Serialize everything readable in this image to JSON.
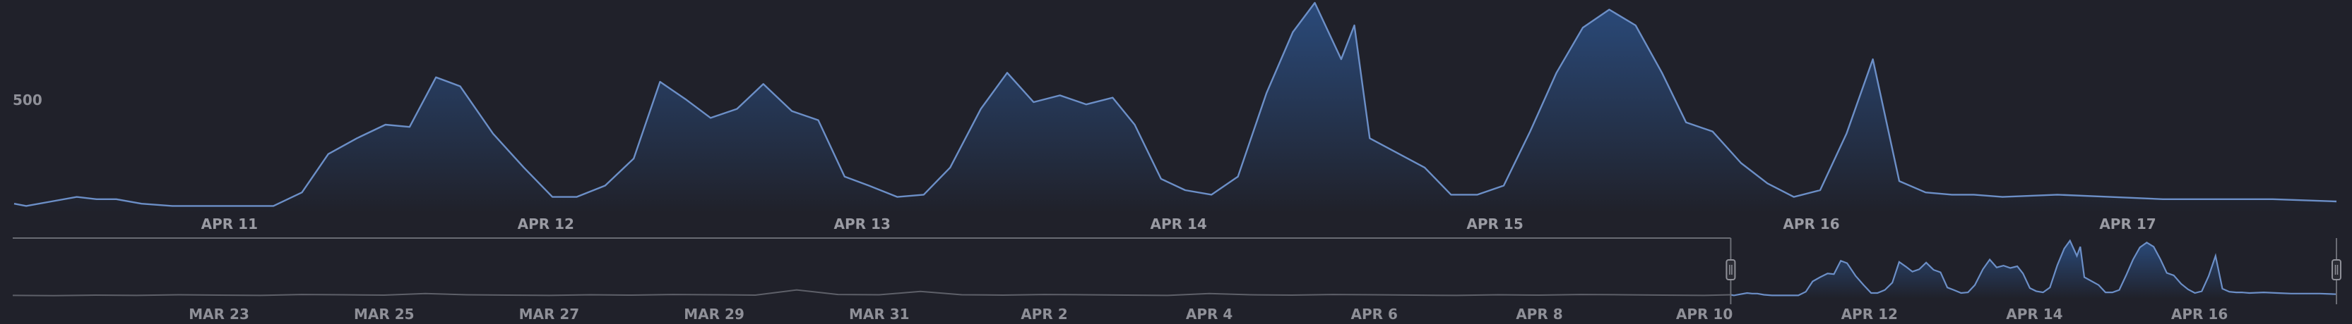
{
  "chart_data": [
    {
      "type": "area",
      "title": "",
      "xlabel": "",
      "ylabel": "",
      "x_range": [
        "2021-04-10T07:40",
        "2021-04-17T15:50"
      ],
      "ylim": [
        0,
        880
      ],
      "y_ticks": [
        500
      ],
      "x_ticks": [
        {
          "x": "2021-04-11",
          "label": "APR 11"
        },
        {
          "x": "2021-04-12",
          "label": "APR 12"
        },
        {
          "x": "2021-04-13",
          "label": "APR 13"
        },
        {
          "x": "2021-04-14",
          "label": "APR 14"
        },
        {
          "x": "2021-04-15",
          "label": "APR 15"
        },
        {
          "x": "2021-04-16",
          "label": "APR 16"
        },
        {
          "x": "2021-04-17",
          "label": "APR 17"
        }
      ],
      "grid": false,
      "legend": "none",
      "colors": {
        "line": "#6c8fc7",
        "fill_top": "#2a4a7a",
        "fill_bottom": "#20212a"
      },
      "x": [
        "2021-04-10T07:40",
        "2021-04-10T08:35",
        "2021-04-10T10:30",
        "2021-04-10T12:25",
        "2021-04-10T13:55",
        "2021-04-10T15:25",
        "2021-04-10T17:20",
        "2021-04-10T19:40",
        "2021-04-10T22:00",
        "2021-04-11T01:25",
        "2021-04-11T03:20",
        "2021-04-11T05:30",
        "2021-04-11T07:30",
        "2021-04-11T09:40",
        "2021-04-11T11:50",
        "2021-04-11T13:40",
        "2021-04-11T15:40",
        "2021-04-11T17:30",
        "2021-04-11T20:00",
        "2021-04-11T22:20",
        "2021-04-12T00:30",
        "2021-04-12T02:20",
        "2021-04-12T04:30",
        "2021-04-12T06:40",
        "2021-04-12T08:40",
        "2021-04-12T10:40",
        "2021-04-12T12:30",
        "2021-04-12T14:30",
        "2021-04-12T16:30",
        "2021-04-12T18:40",
        "2021-04-12T20:40",
        "2021-04-12T22:40",
        "2021-04-13T00:30",
        "2021-04-13T02:40",
        "2021-04-13T04:40",
        "2021-04-13T06:40",
        "2021-04-13T09:00",
        "2021-04-13T11:00",
        "2021-04-13T13:00",
        "2021-04-13T15:00",
        "2021-04-13T17:00",
        "2021-04-13T19:00",
        "2021-04-13T20:40",
        "2021-04-13T22:40",
        "2021-04-14T00:30",
        "2021-04-14T02:30",
        "2021-04-14T04:30",
        "2021-04-14T06:40",
        "2021-04-14T08:40",
        "2021-04-14T10:20",
        "2021-04-14T12:20",
        "2021-04-14T13:20",
        "2021-04-14T14:30",
        "2021-04-14T18:40",
        "2021-04-14T20:40",
        "2021-04-14T22:40",
        "2021-04-15T00:40",
        "2021-04-15T02:40",
        "2021-04-15T04:40",
        "2021-04-15T06:40",
        "2021-04-15T08:40",
        "2021-04-15T10:40",
        "2021-04-15T12:40",
        "2021-04-15T14:30",
        "2021-04-15T16:30",
        "2021-04-15T18:40",
        "2021-04-15T20:40",
        "2021-04-15T22:40",
        "2021-04-16T00:40",
        "2021-04-16T02:40",
        "2021-04-16T04:40",
        "2021-04-16T06:40",
        "2021-04-16T08:40",
        "2021-04-16T10:40",
        "2021-04-16T12:20",
        "2021-04-16T14:30",
        "2021-04-16T18:40",
        "2021-04-16T22:40",
        "2021-04-17T02:40",
        "2021-04-17T06:40",
        "2021-04-17T11:00",
        "2021-04-17T15:50"
      ],
      "y": [
        40,
        30,
        50,
        70,
        60,
        60,
        40,
        30,
        30,
        30,
        30,
        90,
        260,
        330,
        390,
        380,
        600,
        560,
        350,
        200,
        70,
        70,
        120,
        240,
        580,
        500,
        420,
        460,
        570,
        450,
        410,
        160,
        120,
        70,
        80,
        200,
        460,
        620,
        490,
        520,
        480,
        510,
        390,
        150,
        100,
        80,
        160,
        530,
        800,
        930,
        680,
        830,
        330,
        200,
        80,
        80,
        120,
        360,
        620,
        820,
        900,
        830,
        620,
        400,
        360,
        220,
        130,
        70,
        100,
        350,
        680,
        140,
        90,
        80,
        80,
        70,
        80,
        70,
        60,
        60,
        60,
        50
      ],
      "series": [
        {
          "values_ref": "y"
        }
      ]
    },
    {
      "type": "area",
      "title": "",
      "xlabel": "",
      "ylabel": "",
      "x_range": [
        "2021-03-20T12:00",
        "2021-04-17T15:50"
      ],
      "ylim": [
        0,
        880
      ],
      "grid": false,
      "legend": "none",
      "x_ticks": [
        {
          "x": "2021-03-23",
          "label": "MAR 23"
        },
        {
          "x": "2021-03-25",
          "label": "MAR 25"
        },
        {
          "x": "2021-03-27",
          "label": "MAR 27"
        },
        {
          "x": "2021-03-29",
          "label": "MAR 29"
        },
        {
          "x": "2021-03-31",
          "label": "MAR 31"
        },
        {
          "x": "2021-04-02",
          "label": "APR 2"
        },
        {
          "x": "2021-04-04",
          "label": "APR 4"
        },
        {
          "x": "2021-04-06",
          "label": "APR 6"
        },
        {
          "x": "2021-04-08",
          "label": "APR 8"
        },
        {
          "x": "2021-04-10",
          "label": "APR 10"
        },
        {
          "x": "2021-04-12",
          "label": "APR 12"
        },
        {
          "x": "2021-04-14",
          "label": "APR 14"
        },
        {
          "x": "2021-04-16",
          "label": "APR 16"
        }
      ],
      "selection": [
        "2021-04-10T07:40",
        "2021-04-17T15:50"
      ],
      "colors": {
        "line_dim": "#5e6069",
        "line": "#6c8fc7",
        "fill_top": "#2a4a7a",
        "mask": "#2a2b33",
        "border": "#6a6c74"
      },
      "x": [
        "2021-03-20T12:00",
        "2021-03-21T00:00",
        "2021-03-21T12:00",
        "2021-03-22T00:00",
        "2021-03-22T12:00",
        "2021-03-23T00:00",
        "2021-03-23T12:00",
        "2021-03-24T00:00",
        "2021-03-24T12:00",
        "2021-03-25T00:00",
        "2021-03-25T12:00",
        "2021-03-26T00:00",
        "2021-03-26T12:00",
        "2021-03-27T00:00",
        "2021-03-27T12:00",
        "2021-03-28T00:00",
        "2021-03-28T12:00",
        "2021-03-29T00:00",
        "2021-03-29T12:00",
        "2021-03-30T00:00",
        "2021-03-30T12:00",
        "2021-03-31T00:00",
        "2021-03-31T12:00",
        "2021-04-01T00:00",
        "2021-04-01T12:00",
        "2021-04-02T00:00",
        "2021-04-02T12:00",
        "2021-04-03T00:00",
        "2021-04-03T12:00",
        "2021-04-04T00:00",
        "2021-04-04T12:00",
        "2021-04-05T00:00",
        "2021-04-05T12:00",
        "2021-04-06T00:00",
        "2021-04-06T12:00",
        "2021-04-07T00:00",
        "2021-04-07T12:00",
        "2021-04-08T00:00",
        "2021-04-08T12:00",
        "2021-04-09T00:00",
        "2021-04-09T12:00",
        "2021-04-10T00:00",
        "2021-04-10T07:40",
        "2021-04-10T08:35",
        "2021-04-10T10:30",
        "2021-04-10T12:25",
        "2021-04-10T13:55",
        "2021-04-10T15:25",
        "2021-04-10T17:20",
        "2021-04-10T19:40",
        "2021-04-10T22:00",
        "2021-04-11T01:25",
        "2021-04-11T03:20",
        "2021-04-11T05:30",
        "2021-04-11T07:30",
        "2021-04-11T09:40",
        "2021-04-11T11:50",
        "2021-04-11T13:40",
        "2021-04-11T15:40",
        "2021-04-11T17:30",
        "2021-04-11T20:00",
        "2021-04-11T22:20",
        "2021-04-12T00:30",
        "2021-04-12T02:20",
        "2021-04-12T04:30",
        "2021-04-12T06:40",
        "2021-04-12T08:40",
        "2021-04-12T10:40",
        "2021-04-12T12:30",
        "2021-04-12T14:30",
        "2021-04-12T16:30",
        "2021-04-12T18:40",
        "2021-04-12T20:40",
        "2021-04-12T22:40",
        "2021-04-13T00:30",
        "2021-04-13T02:40",
        "2021-04-13T04:40",
        "2021-04-13T06:40",
        "2021-04-13T09:00",
        "2021-04-13T11:00",
        "2021-04-13T13:00",
        "2021-04-13T15:00",
        "2021-04-13T17:00",
        "2021-04-13T19:00",
        "2021-04-13T20:40",
        "2021-04-13T22:40",
        "2021-04-14T00:30",
        "2021-04-14T02:30",
        "2021-04-14T04:30",
        "2021-04-14T06:40",
        "2021-04-14T08:40",
        "2021-04-14T10:20",
        "2021-04-14T12:20",
        "2021-04-14T13:20",
        "2021-04-14T14:30",
        "2021-04-14T18:40",
        "2021-04-14T20:40",
        "2021-04-14T22:40",
        "2021-04-15T00:40",
        "2021-04-15T02:40",
        "2021-04-15T04:40",
        "2021-04-15T06:40",
        "2021-04-15T08:40",
        "2021-04-15T10:40",
        "2021-04-15T12:40",
        "2021-04-15T14:30",
        "2021-04-15T16:30",
        "2021-04-15T18:40",
        "2021-04-15T20:40",
        "2021-04-15T22:40",
        "2021-04-16T00:40",
        "2021-04-16T02:40",
        "2021-04-16T04:40",
        "2021-04-16T06:40",
        "2021-04-16T08:40",
        "2021-04-16T10:40",
        "2021-04-16T12:20",
        "2021-04-16T14:30",
        "2021-04-16T18:40",
        "2021-04-16T22:40",
        "2021-04-17T02:40",
        "2021-04-17T06:40",
        "2021-04-17T11:00",
        "2021-04-17T15:50"
      ],
      "y": [
        30,
        25,
        35,
        30,
        40,
        35,
        30,
        45,
        40,
        35,
        60,
        40,
        35,
        30,
        40,
        35,
        45,
        40,
        35,
        120,
        45,
        40,
        95,
        40,
        35,
        45,
        40,
        35,
        30,
        60,
        40,
        35,
        45,
        40,
        35,
        30,
        40,
        35,
        45,
        40,
        35,
        30,
        40,
        30,
        50,
        70,
        60,
        60,
        40,
        30,
        30,
        30,
        30,
        90,
        260,
        330,
        390,
        380,
        600,
        560,
        350,
        200,
        70,
        70,
        120,
        240,
        580,
        500,
        420,
        460,
        570,
        450,
        410,
        160,
        120,
        70,
        80,
        200,
        460,
        620,
        490,
        520,
        480,
        510,
        390,
        150,
        100,
        80,
        160,
        530,
        800,
        930,
        680,
        830,
        330,
        200,
        80,
        80,
        120,
        360,
        620,
        820,
        900,
        830,
        620,
        400,
        360,
        220,
        130,
        70,
        100,
        350,
        680,
        140,
        90,
        80,
        80,
        70,
        80,
        70,
        60,
        60,
        60,
        50
      ]
    }
  ]
}
